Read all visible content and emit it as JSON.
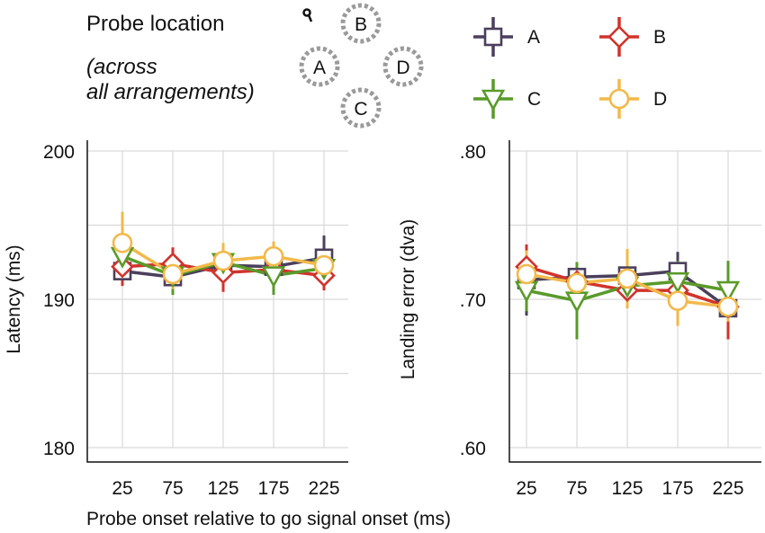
{
  "header": {
    "title": "Probe location",
    "subtitle_line1": "(across",
    "subtitle_line2": "all arrangements)",
    "locations": [
      "B",
      "A",
      "D",
      "C"
    ]
  },
  "legend": [
    {
      "name": "A",
      "color": "#4b3f5c",
      "marker": "square"
    },
    {
      "name": "B",
      "color": "#d0342c",
      "marker": "diamond"
    },
    {
      "name": "C",
      "color": "#5a9a2a",
      "marker": "triangle-down"
    },
    {
      "name": "D",
      "color": "#f2b94a",
      "marker": "circle"
    }
  ],
  "xlabel": "Probe onset relative to go signal onset (ms)",
  "chart_data": [
    {
      "type": "line",
      "x": [
        25,
        75,
        125,
        175,
        225
      ],
      "xticklabels": [
        "25",
        "75",
        "125",
        "175",
        "225"
      ],
      "ylabel": "Latency (ms)",
      "ylim": [
        180,
        200
      ],
      "yticks": [
        180,
        190,
        200
      ],
      "yticklabels": [
        "180",
        "190",
        "200"
      ],
      "grid": true,
      "series": [
        {
          "name": "A",
          "color": "#4b3f5c",
          "marker": "square",
          "values": [
            191.9,
            191.5,
            192.3,
            192.2,
            192.8
          ],
          "err": [
            0.8,
            1.2,
            1.0,
            1.2,
            1.5
          ]
        },
        {
          "name": "B",
          "color": "#d0342c",
          "marker": "diamond",
          "values": [
            192.2,
            192.4,
            191.8,
            192.0,
            191.6
          ],
          "err": [
            1.3,
            1.1,
            1.3,
            1.6,
            1.0
          ]
        },
        {
          "name": "C",
          "color": "#5a9a2a",
          "marker": "triangle-down",
          "values": [
            192.9,
            191.6,
            192.5,
            191.6,
            192.1
          ],
          "err": [
            1.2,
            1.3,
            0.9,
            1.3,
            0.8
          ]
        },
        {
          "name": "D",
          "color": "#f2b94a",
          "marker": "circle",
          "values": [
            193.8,
            191.7,
            192.6,
            192.9,
            192.3
          ],
          "err": [
            2.1,
            1.0,
            1.2,
            1.0,
            0.8
          ]
        }
      ]
    },
    {
      "type": "line",
      "x": [
        25,
        75,
        125,
        175,
        225
      ],
      "xticklabels": [
        "25",
        "75",
        "125",
        "175",
        "225"
      ],
      "ylabel": "Landing error (dva)",
      "ylim": [
        0.6,
        0.8
      ],
      "yticks": [
        0.6,
        0.7,
        0.8
      ],
      "yticklabels": [
        ".60",
        ".70",
        ".80"
      ],
      "grid": true,
      "series": [
        {
          "name": "A",
          "color": "#4b3f5c",
          "marker": "square",
          "values": [
            0.713,
            0.715,
            0.716,
            0.719,
            0.694
          ],
          "err": [
            0.024,
            0.01,
            0.014,
            0.013,
            0.01
          ]
        },
        {
          "name": "B",
          "color": "#d0342c",
          "marker": "diamond",
          "values": [
            0.722,
            0.712,
            0.706,
            0.706,
            0.695
          ],
          "err": [
            0.015,
            0.013,
            0.012,
            0.016,
            0.022
          ]
        },
        {
          "name": "C",
          "color": "#5a9a2a",
          "marker": "triangle-down",
          "values": [
            0.706,
            0.699,
            0.709,
            0.712,
            0.706
          ],
          "err": [
            0.014,
            0.026,
            0.01,
            0.014,
            0.02
          ]
        },
        {
          "name": "D",
          "color": "#f2b94a",
          "marker": "circle",
          "values": [
            0.717,
            0.711,
            0.714,
            0.699,
            0.695
          ],
          "err": [
            0.016,
            0.01,
            0.02,
            0.017,
            0.01
          ]
        }
      ]
    }
  ]
}
